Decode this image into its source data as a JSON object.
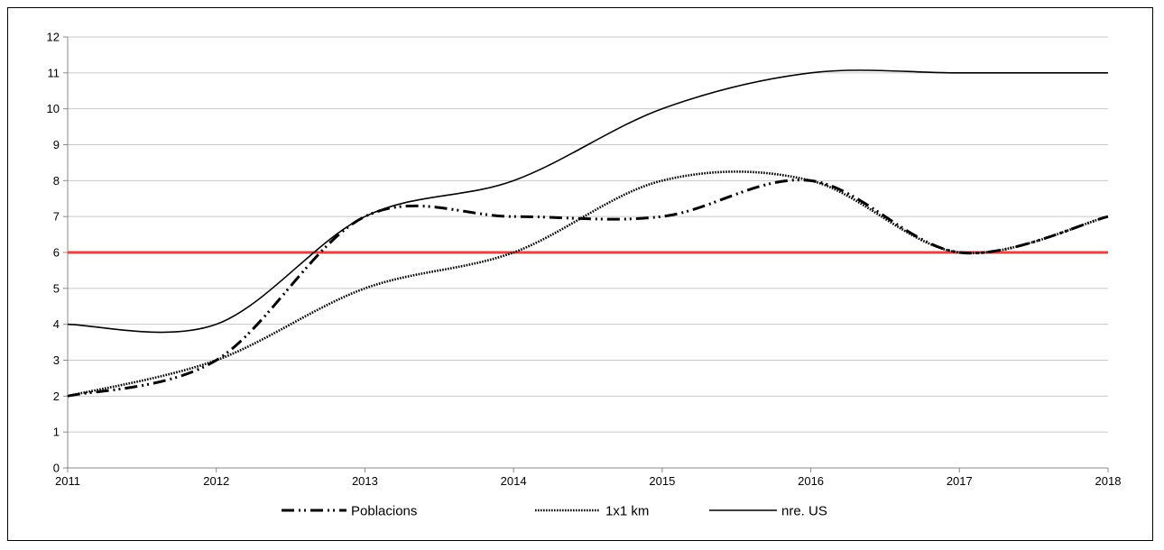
{
  "chart_data": {
    "type": "line",
    "x": [
      2011,
      2012,
      2013,
      2014,
      2015,
      2016,
      2017,
      2018
    ],
    "x_tick_labels": [
      "2011",
      "2012",
      "2013",
      "2014",
      "2015",
      "2016",
      "2017",
      "2018"
    ],
    "y_tick_labels": [
      "0",
      "1",
      "2",
      "3",
      "4",
      "5",
      "6",
      "7",
      "8",
      "9",
      "10",
      "11",
      "12"
    ],
    "ylim": [
      0,
      12
    ],
    "xlim": [
      2011,
      2018
    ],
    "grid": true,
    "smooth": true,
    "legend_position": "bottom",
    "series": [
      {
        "name": "Poblacions",
        "values": [
          2,
          3,
          7,
          7,
          7,
          8,
          6,
          7
        ],
        "color": "#000000",
        "dash": "dash-dot-dot"
      },
      {
        "name": "1x1 km",
        "values": [
          2,
          3,
          5,
          6,
          8,
          8,
          6,
          7
        ],
        "color": "#000000",
        "dash": "dotted"
      },
      {
        "name": "nre. US",
        "values": [
          4,
          4,
          7,
          8,
          10,
          11,
          11,
          11
        ],
        "color": "#000000",
        "dash": "solid"
      }
    ],
    "reference_line": {
      "y": 6,
      "color": "#e04444"
    }
  }
}
